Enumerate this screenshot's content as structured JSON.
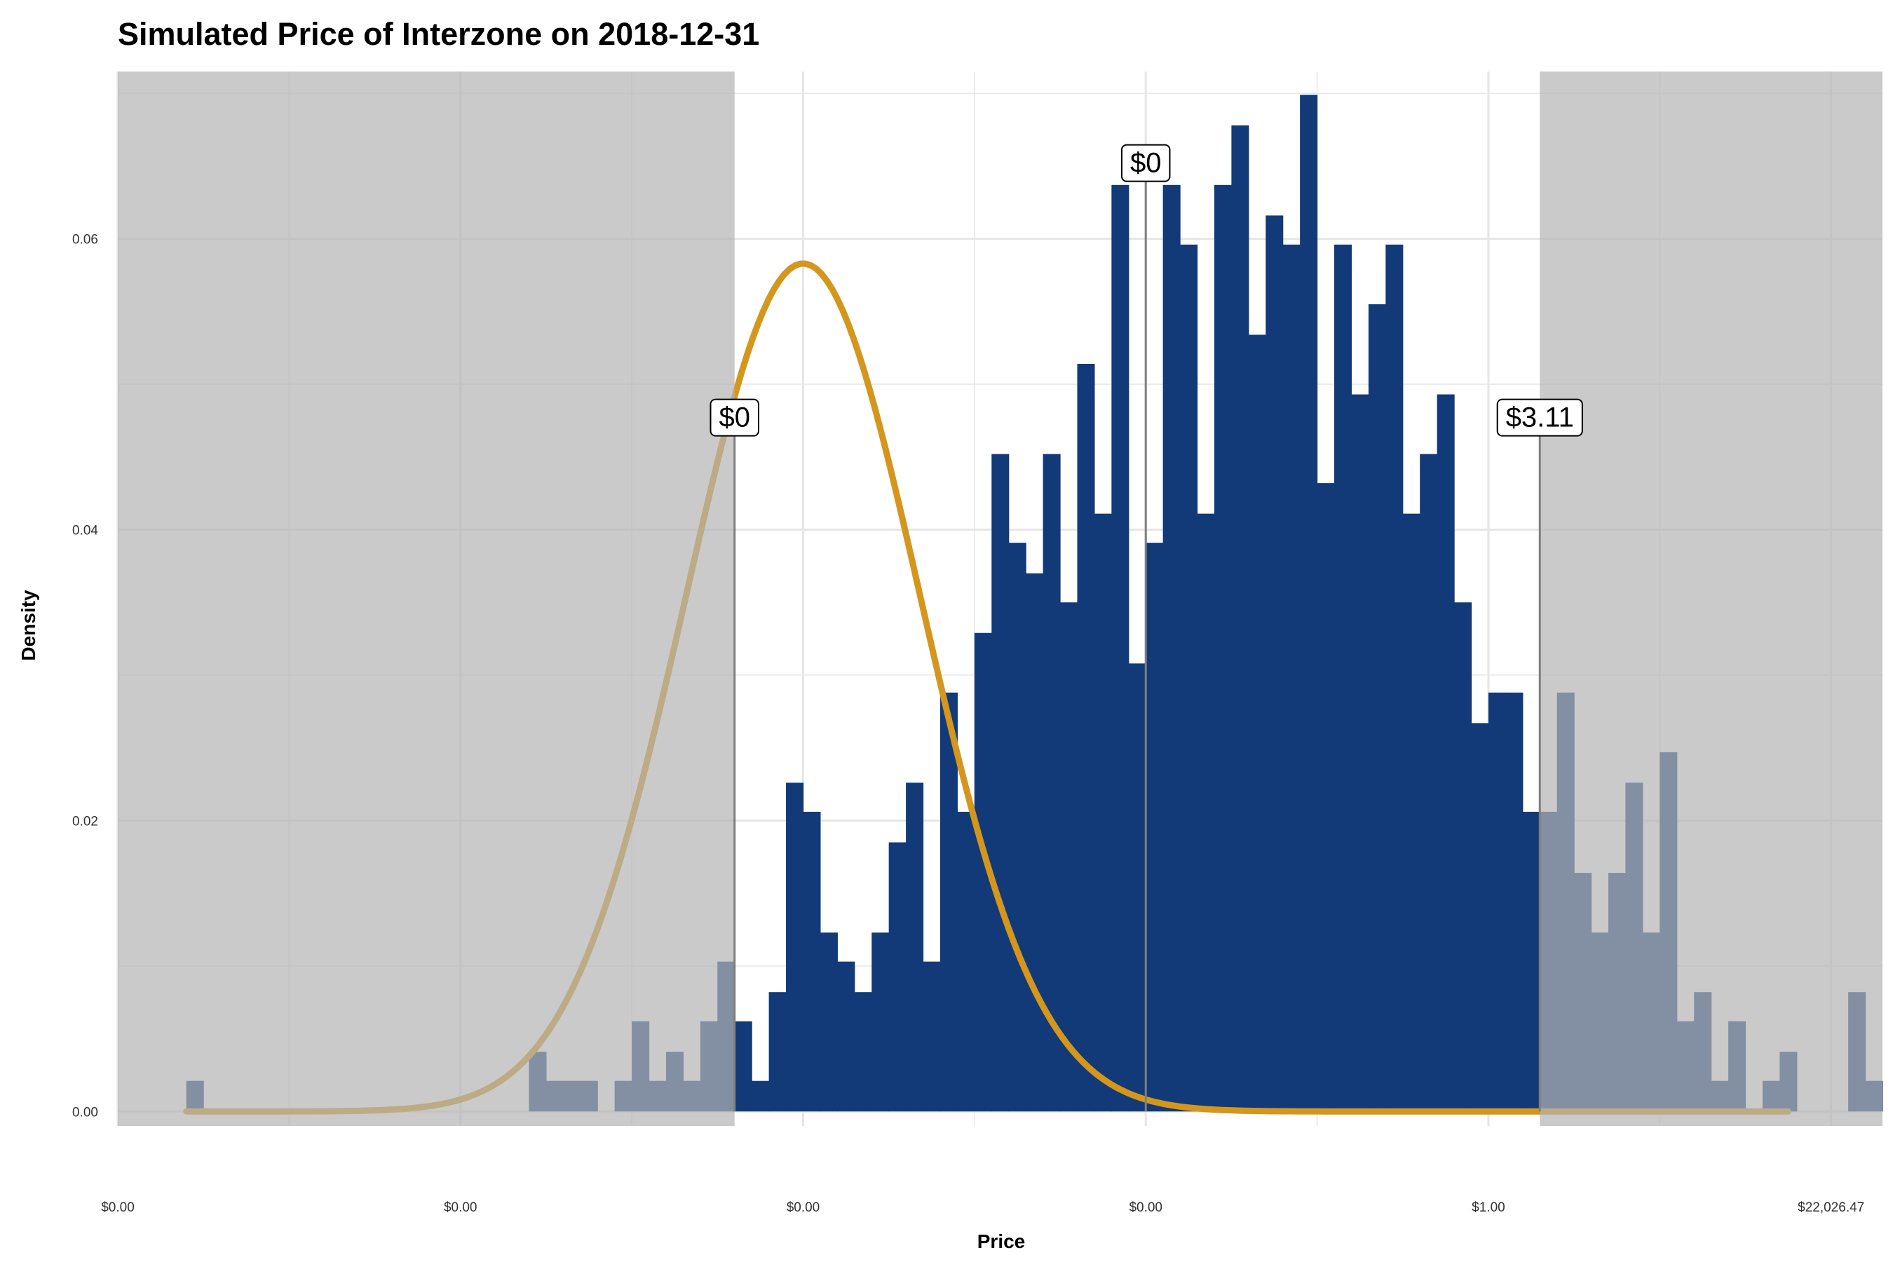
{
  "chart_data": {
    "type": "bar",
    "title": "Simulated Price of Interzone on 2018-12-31",
    "xlabel": "Price",
    "ylabel": "Density",
    "xlim": [
      -4.0,
      6.3
    ],
    "ylim": [
      -0.001,
      0.0715
    ],
    "y_ticks": [
      0.0,
      0.02,
      0.04,
      0.06
    ],
    "y_tick_labels": [
      "0.00",
      "0.02",
      "0.04",
      "0.06"
    ],
    "y_minor_ticks": [
      0.01,
      0.03,
      0.05,
      0.07
    ],
    "x_ticks": [
      -4,
      -2,
      0,
      2,
      4,
      6
    ],
    "x_tick_labels": [
      "$0.00",
      "$0.00",
      "$0.00",
      "$0.00",
      "$1.00",
      "$22,026.47"
    ],
    "x_minor_ticks": [
      -3,
      -1,
      1,
      3,
      5
    ],
    "grid": true,
    "shaded_regions": [
      {
        "from": -4.0,
        "to": -0.4
      },
      {
        "from": 4.3,
        "to": 6.3
      }
    ],
    "colors": {
      "bar": "#123a78",
      "curve": "#d4961c",
      "shade": "#b3b3b3",
      "grid": "#e6e6e6",
      "vline": "#7f7f7f"
    },
    "bars": {
      "bin_width": 0.1,
      "start": -3.6,
      "values": [
        0.0021,
        0,
        0,
        0,
        0,
        0,
        0,
        0,
        0,
        0,
        0,
        0,
        0,
        0,
        0,
        0,
        0,
        0,
        0,
        0,
        0.0041,
        0.0021,
        0.0021,
        0.0021,
        0,
        0.0021,
        0.0062,
        0.0021,
        0.0041,
        0.0021,
        0.0062,
        0.0103,
        0.0062,
        0.0021,
        0.0082,
        0.0226,
        0.0206,
        0.0123,
        0.0103,
        0.0082,
        0.0123,
        0.0185,
        0.0226,
        0.0103,
        0.0288,
        0.0206,
        0.0329,
        0.0452,
        0.0391,
        0.037,
        0.0452,
        0.035,
        0.0514,
        0.0411,
        0.0637,
        0.0308,
        0.0391,
        0.0637,
        0.0596,
        0.0411,
        0.0637,
        0.0678,
        0.0534,
        0.0616,
        0.0596,
        0.0699,
        0.0432,
        0.0596,
        0.0493,
        0.0555,
        0.0596,
        0.0411,
        0.0452,
        0.0493,
        0.035,
        0.0267,
        0.0288,
        0.0288,
        0.0206,
        0.0206,
        0.0288,
        0.0164,
        0.0123,
        0.0164,
        0.0226,
        0.0123,
        0.0247,
        0.0062,
        0.0082,
        0.0021,
        0.0062,
        0,
        0.0021,
        0.0041,
        0,
        0,
        0,
        0.0082,
        0.0021,
        0,
        0,
        0.0021,
        0,
        0.0021
      ]
    },
    "curve": {
      "mean": 0.0,
      "sd": 0.685,
      "x_from": -3.6,
      "x_to": 5.75,
      "peak": 0.0583
    },
    "annotations": [
      {
        "x": -0.4,
        "y": 0.0465,
        "label": "$0"
      },
      {
        "x": 2.0,
        "y": 0.064,
        "label": "$0"
      },
      {
        "x": 4.3,
        "y": 0.0465,
        "label": "$3.11"
      }
    ]
  }
}
